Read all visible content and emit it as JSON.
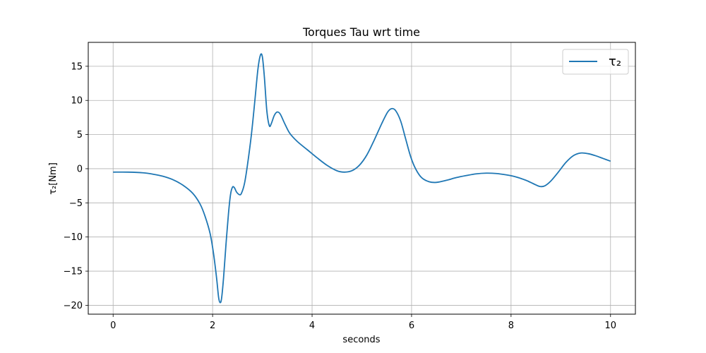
{
  "chart_data": {
    "type": "line",
    "title": "Torques Tau wrt time",
    "xlabel": "seconds",
    "ylabel": "τ₂[Nm]",
    "xlim": [
      -0.5,
      10.5
    ],
    "ylim": [
      -21.3,
      18.5
    ],
    "xticks": [
      0,
      2,
      4,
      6,
      8,
      10
    ],
    "xtick_labels": [
      "0",
      "2",
      "4",
      "6",
      "8",
      "10"
    ],
    "yticks": [
      15,
      10,
      5,
      0,
      -5,
      -10,
      -15,
      -20
    ],
    "ytick_labels": [
      "15",
      "10",
      "5",
      "0",
      "−5",
      "−10",
      "−15",
      "−20"
    ],
    "grid": true,
    "legend_position": "top-right",
    "series": [
      {
        "name": "τ₂",
        "color": "#1f77b4",
        "points": [
          [
            0.0,
            -0.5
          ],
          [
            0.3,
            -0.5
          ],
          [
            0.6,
            -0.6
          ],
          [
            0.8,
            -0.8
          ],
          [
            1.0,
            -1.1
          ],
          [
            1.2,
            -1.6
          ],
          [
            1.4,
            -2.4
          ],
          [
            1.6,
            -3.6
          ],
          [
            1.75,
            -5.2
          ],
          [
            1.85,
            -7.0
          ],
          [
            1.95,
            -9.5
          ],
          [
            2.02,
            -12.5
          ],
          [
            2.08,
            -16.0
          ],
          [
            2.12,
            -18.8
          ],
          [
            2.15,
            -19.6
          ],
          [
            2.18,
            -19.0
          ],
          [
            2.22,
            -16.0
          ],
          [
            2.27,
            -11.0
          ],
          [
            2.32,
            -6.5
          ],
          [
            2.36,
            -3.8
          ],
          [
            2.4,
            -2.7
          ],
          [
            2.44,
            -2.8
          ],
          [
            2.48,
            -3.4
          ],
          [
            2.54,
            -3.8
          ],
          [
            2.58,
            -3.6
          ],
          [
            2.64,
            -2.2
          ],
          [
            2.7,
            0.5
          ],
          [
            2.78,
            5.0
          ],
          [
            2.85,
            10.0
          ],
          [
            2.91,
            14.5
          ],
          [
            2.96,
            16.6
          ],
          [
            3.0,
            16.4
          ],
          [
            3.04,
            13.5
          ],
          [
            3.09,
            8.5
          ],
          [
            3.14,
            6.3
          ],
          [
            3.18,
            6.6
          ],
          [
            3.24,
            7.8
          ],
          [
            3.3,
            8.3
          ],
          [
            3.36,
            8.0
          ],
          [
            3.45,
            6.6
          ],
          [
            3.55,
            5.2
          ],
          [
            3.7,
            4.0
          ],
          [
            3.9,
            2.8
          ],
          [
            4.1,
            1.6
          ],
          [
            4.3,
            0.5
          ],
          [
            4.5,
            -0.3
          ],
          [
            4.65,
            -0.5
          ],
          [
            4.8,
            -0.3
          ],
          [
            4.95,
            0.5
          ],
          [
            5.1,
            2.0
          ],
          [
            5.25,
            4.2
          ],
          [
            5.4,
            6.6
          ],
          [
            5.52,
            8.3
          ],
          [
            5.6,
            8.8
          ],
          [
            5.68,
            8.5
          ],
          [
            5.78,
            7.0
          ],
          [
            5.88,
            4.4
          ],
          [
            5.98,
            1.8
          ],
          [
            6.08,
            0.0
          ],
          [
            6.2,
            -1.3
          ],
          [
            6.35,
            -1.9
          ],
          [
            6.5,
            -2.0
          ],
          [
            6.7,
            -1.7
          ],
          [
            6.9,
            -1.3
          ],
          [
            7.1,
            -1.0
          ],
          [
            7.3,
            -0.75
          ],
          [
            7.5,
            -0.65
          ],
          [
            7.7,
            -0.7
          ],
          [
            7.9,
            -0.9
          ],
          [
            8.1,
            -1.2
          ],
          [
            8.3,
            -1.7
          ],
          [
            8.45,
            -2.2
          ],
          [
            8.58,
            -2.6
          ],
          [
            8.68,
            -2.5
          ],
          [
            8.8,
            -1.8
          ],
          [
            8.95,
            -0.5
          ],
          [
            9.1,
            0.9
          ],
          [
            9.25,
            1.9
          ],
          [
            9.4,
            2.3
          ],
          [
            9.55,
            2.2
          ],
          [
            9.7,
            1.9
          ],
          [
            9.85,
            1.5
          ],
          [
            10.0,
            1.1
          ]
        ]
      }
    ]
  }
}
